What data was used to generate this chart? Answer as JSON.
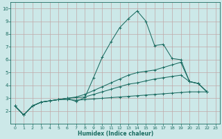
{
  "xlabel": "Humidex (Indice chaleur)",
  "bg_color": "#cce8e8",
  "grid_color": "#b8c8c0",
  "line_color": "#1a6b60",
  "xlim": [
    -0.5,
    23.5
  ],
  "ylim": [
    1.0,
    10.5
  ],
  "xticks": [
    0,
    1,
    2,
    3,
    4,
    5,
    6,
    7,
    8,
    9,
    10,
    11,
    12,
    13,
    14,
    15,
    16,
    17,
    18,
    19,
    20,
    21,
    22,
    23
  ],
  "yticks": [
    2,
    3,
    4,
    5,
    6,
    7,
    8,
    9,
    10
  ],
  "series": [
    {
      "x": [
        0,
        1,
        2,
        3,
        4,
        5,
        6,
        7,
        8,
        9,
        10,
        11,
        12,
        13,
        14,
        15,
        16,
        17,
        18,
        19,
        20,
        21,
        22
      ],
      "y": [
        2.4,
        1.7,
        2.4,
        2.7,
        2.8,
        2.9,
        3.0,
        2.75,
        3.05,
        4.6,
        6.2,
        7.4,
        8.5,
        9.2,
        9.8,
        9.0,
        7.1,
        7.2,
        6.1,
        6.0,
        4.3,
        4.15,
        3.5
      ]
    },
    {
      "x": [
        0,
        1,
        2,
        3,
        4,
        5,
        6,
        7,
        8,
        9,
        10,
        11,
        12,
        13,
        14,
        15,
        16,
        17,
        18,
        19,
        20,
        21,
        22
      ],
      "y": [
        2.4,
        1.7,
        2.4,
        2.7,
        2.8,
        2.9,
        3.0,
        3.1,
        3.3,
        3.6,
        3.9,
        4.2,
        4.5,
        4.8,
        5.0,
        5.1,
        5.2,
        5.4,
        5.6,
        5.8,
        4.3,
        4.15,
        3.5
      ]
    },
    {
      "x": [
        0,
        1,
        2,
        3,
        4,
        5,
        6,
        7,
        8,
        9,
        10,
        11,
        12,
        13,
        14,
        15,
        16,
        17,
        18,
        19,
        20,
        21,
        22
      ],
      "y": [
        2.4,
        1.7,
        2.4,
        2.7,
        2.8,
        2.9,
        3.0,
        3.05,
        3.1,
        3.3,
        3.5,
        3.7,
        3.9,
        4.1,
        4.2,
        4.35,
        4.5,
        4.6,
        4.7,
        4.8,
        4.3,
        4.15,
        3.5
      ]
    },
    {
      "x": [
        0,
        1,
        2,
        3,
        4,
        5,
        6,
        7,
        8,
        9,
        10,
        11,
        12,
        13,
        14,
        15,
        16,
        17,
        18,
        19,
        20,
        21,
        22
      ],
      "y": [
        2.4,
        1.7,
        2.4,
        2.7,
        2.8,
        2.9,
        2.9,
        2.85,
        2.9,
        2.95,
        3.0,
        3.05,
        3.1,
        3.15,
        3.2,
        3.25,
        3.3,
        3.35,
        3.4,
        3.45,
        3.5,
        3.5,
        3.5
      ]
    }
  ]
}
